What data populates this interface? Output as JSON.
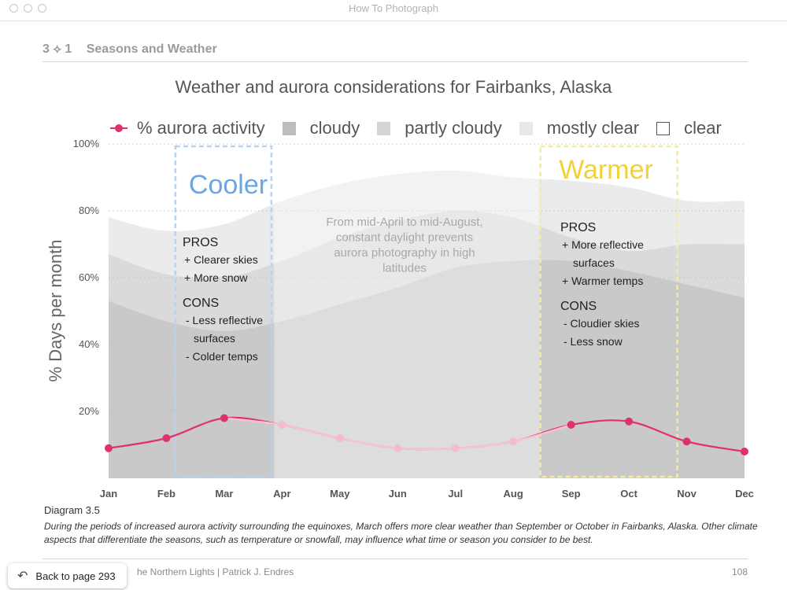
{
  "window": {
    "title": "How To Photograph"
  },
  "section": {
    "number": "3 ⟡ 1",
    "title": "Seasons and Weather"
  },
  "chart_data": {
    "type": "area",
    "title": "Weather and aurora considerations for Fairbanks, Alaska",
    "ylabel": "% Days per month",
    "ylim": [
      0,
      100
    ],
    "y_ticks": [
      20,
      40,
      60,
      80,
      100
    ],
    "y_tick_labels": [
      "20%",
      "40%",
      "60%",
      "80%",
      "100%"
    ],
    "categories": [
      "Jan",
      "Feb",
      "Mar",
      "Apr",
      "May",
      "Jun",
      "Jul",
      "Aug",
      "Sep",
      "Oct",
      "Nov",
      "Dec"
    ],
    "grid": true,
    "legend_position": "top",
    "series": [
      {
        "name": "cloudy",
        "kind": "area",
        "color": "#c9c9c9",
        "values": [
          53,
          47,
          44,
          47,
          52,
          57,
          63,
          65,
          65,
          62,
          58,
          54
        ]
      },
      {
        "name": "partly cloudy",
        "kind": "area",
        "color": "#dadada",
        "values": [
          67,
          61,
          60,
          65,
          72,
          77,
          80,
          78,
          72,
          68,
          70,
          70
        ]
      },
      {
        "name": "mostly clear",
        "kind": "area",
        "color": "#ebebeb",
        "values": [
          78,
          74,
          76,
          83,
          88,
          91,
          92,
          90,
          89,
          87,
          83,
          83
        ]
      },
      {
        "name": "clear",
        "kind": "area",
        "color": "#ffffff",
        "values": [
          100,
          100,
          100,
          100,
          100,
          100,
          100,
          100,
          100,
          100,
          100,
          100
        ]
      },
      {
        "name": "% aurora activity",
        "kind": "line",
        "color": "#e0306e",
        "values": [
          9,
          12,
          18,
          16,
          12,
          9,
          9,
          11,
          16,
          17,
          11,
          8
        ]
      }
    ],
    "annotations": {
      "cooler": {
        "title": "Cooler",
        "color": "#6aa6e6",
        "pros_title": "PROS",
        "pros": [
          "+ Clearer skies",
          "+ More snow"
        ],
        "cons_title": "CONS",
        "cons": [
          "- Less reflective",
          "surfaces",
          "- Colder temps"
        ]
      },
      "warmer": {
        "title": "Warmer",
        "color": "#f0d23a",
        "pros_title": "PROS",
        "pros": [
          "+ More reflective",
          "surfaces",
          "+ Warmer temps"
        ],
        "cons_title": "CONS",
        "cons": [
          "- Cloudier skies",
          "- Less snow"
        ]
      },
      "daylight_note": [
        "From mid-April to mid-August,",
        "constant daylight prevents",
        "aurora photography in high",
        "latitudes"
      ]
    }
  },
  "caption": {
    "title": "Diagram 3.5",
    "text": "During the periods of increased aurora activity surrounding the equinoxes, March offers more clear weather than September or October in Fairbanks, Alaska. Other climate aspects that differentiate the seasons, such as temperature or snowfall, may influence what time or season you consider to be best."
  },
  "footer": {
    "book": "he Northern Lights  |  Patrick J. Endres",
    "page": "108"
  },
  "back_button": {
    "label": "Back to page 293",
    "icon": "back-arrow-icon"
  }
}
